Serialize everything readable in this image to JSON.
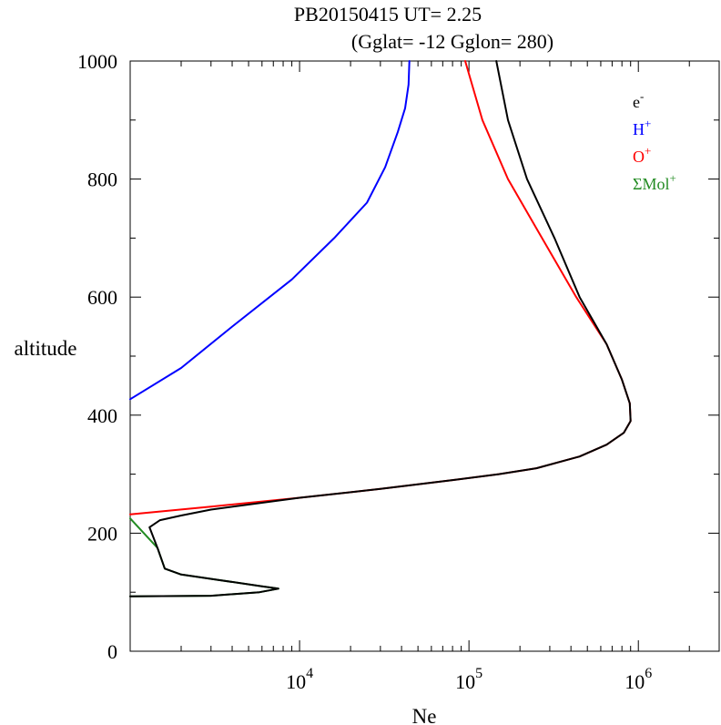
{
  "chart_data": {
    "type": "line",
    "title_line1": "PB20150415   UT=  2.25",
    "title_line2": "(Gglat= -12   Gglon=  280)",
    "xlabel": "Ne",
    "ylabel": "altitude",
    "xscale": "log",
    "xlim": [
      1000,
      3000000
    ],
    "ylim": [
      0,
      1000
    ],
    "y_ticks": [
      0,
      200,
      400,
      600,
      800,
      1000
    ],
    "y_tick_labels": [
      "0",
      "200",
      "400",
      "600",
      "800",
      "1000"
    ],
    "x_major_ticks": [
      10000,
      100000,
      1000000
    ],
    "x_tick_labels": [
      {
        "base": "10",
        "exp": "4"
      },
      {
        "base": "10",
        "exp": "5"
      },
      {
        "base": "10",
        "exp": "6"
      }
    ],
    "grid": false,
    "legend_position": "top-right",
    "series": [
      {
        "name": "e",
        "sup": "-",
        "color": "#000000",
        "points": [
          [
            1000,
            93
          ],
          [
            3000,
            94
          ],
          [
            5800,
            100
          ],
          [
            7500,
            106
          ],
          [
            6000,
            110
          ],
          [
            2000,
            130
          ],
          [
            1600,
            140
          ],
          [
            1450,
            175
          ],
          [
            1300,
            210
          ],
          [
            1500,
            222
          ],
          [
            2000,
            230
          ],
          [
            3000,
            240
          ],
          [
            10000,
            260
          ],
          [
            30000,
            275
          ],
          [
            80000,
            290
          ],
          [
            150000,
            300
          ],
          [
            250000,
            310
          ],
          [
            450000,
            330
          ],
          [
            650000,
            350
          ],
          [
            820000,
            370
          ],
          [
            900000,
            390
          ],
          [
            890000,
            420
          ],
          [
            800000,
            460
          ],
          [
            650000,
            520
          ],
          [
            450000,
            600
          ],
          [
            320000,
            700
          ],
          [
            220000,
            800
          ],
          [
            170000,
            900
          ],
          [
            145000,
            1000
          ]
        ]
      },
      {
        "name": "H",
        "sup": "+",
        "color": "#0000ff",
        "points": [
          [
            1000,
            427
          ],
          [
            2000,
            480
          ],
          [
            4000,
            550
          ],
          [
            9000,
            630
          ],
          [
            16000,
            700
          ],
          [
            25000,
            760
          ],
          [
            32000,
            820
          ],
          [
            38000,
            880
          ],
          [
            42000,
            920
          ],
          [
            44000,
            960
          ],
          [
            44500,
            1000
          ]
        ]
      },
      {
        "name": "O",
        "sup": "+",
        "color": "#ff0000",
        "points": [
          [
            1000,
            232
          ],
          [
            3000,
            245
          ],
          [
            10000,
            260
          ],
          [
            30000,
            275
          ],
          [
            80000,
            290
          ],
          [
            150000,
            300
          ],
          [
            250000,
            310
          ],
          [
            450000,
            330
          ],
          [
            650000,
            350
          ],
          [
            820000,
            370
          ],
          [
            900000,
            390
          ],
          [
            890000,
            420
          ],
          [
            800000,
            460
          ],
          [
            650000,
            520
          ],
          [
            430000,
            600
          ],
          [
            270000,
            700
          ],
          [
            170000,
            800
          ],
          [
            120000,
            900
          ],
          [
            95000,
            1000
          ]
        ]
      },
      {
        "name": "ΣMol",
        "sup": "+",
        "color": "#228b22",
        "points": [
          [
            1000,
            93
          ],
          [
            3000,
            94
          ],
          [
            5800,
            100
          ],
          [
            7500,
            106
          ],
          [
            6000,
            110
          ],
          [
            2000,
            130
          ],
          [
            1600,
            140
          ],
          [
            1450,
            175
          ],
          [
            1000,
            225
          ]
        ]
      }
    ]
  }
}
